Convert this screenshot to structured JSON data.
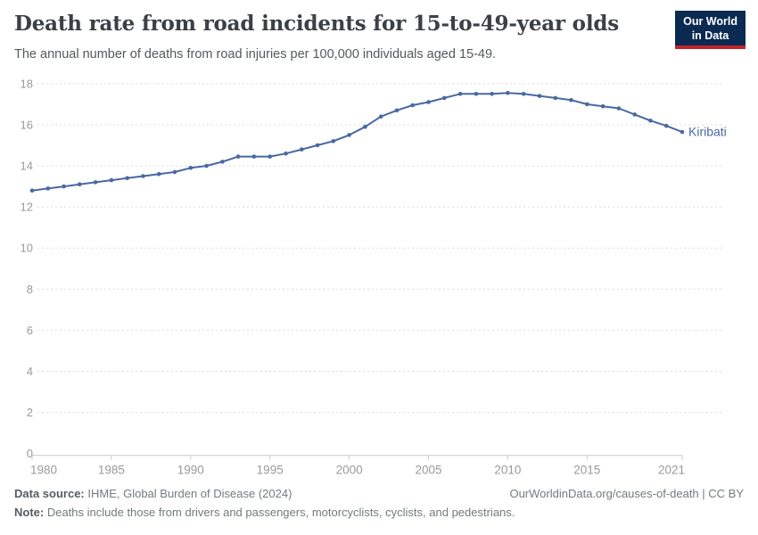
{
  "header": {
    "title": "Death rate from road incidents for 15-to-49-year olds",
    "subtitle": "The annual number of deaths from road injuries per 100,000 individuals aged 15-49."
  },
  "logo": {
    "line1": "Our World",
    "line2": "in Data"
  },
  "chart_data": {
    "type": "line",
    "title": "Death rate from road incidents for 15-to-49-year olds",
    "xlabel": "",
    "ylabel": "",
    "xlim": [
      1980,
      2021
    ],
    "ylim": [
      0,
      18
    ],
    "grid": "horizontal-dashed",
    "x_ticks": [
      1980,
      1985,
      1990,
      1995,
      2000,
      2005,
      2010,
      2015,
      2021
    ],
    "y_ticks": [
      0,
      2,
      4,
      6,
      8,
      10,
      12,
      14,
      16,
      18
    ],
    "legend_position": "end-of-line-label",
    "series": [
      {
        "name": "Kiribati",
        "color": "#4a68a1",
        "x": [
          1980,
          1981,
          1982,
          1983,
          1984,
          1985,
          1986,
          1987,
          1988,
          1989,
          1990,
          1991,
          1992,
          1993,
          1994,
          1995,
          1996,
          1997,
          1998,
          1999,
          2000,
          2001,
          2002,
          2003,
          2004,
          2005,
          2006,
          2007,
          2008,
          2009,
          2010,
          2011,
          2012,
          2013,
          2014,
          2015,
          2016,
          2017,
          2018,
          2019,
          2020,
          2021
        ],
        "values": [
          12.8,
          12.9,
          13.0,
          13.1,
          13.2,
          13.3,
          13.4,
          13.5,
          13.6,
          13.7,
          13.9,
          14.0,
          14.2,
          14.45,
          14.45,
          14.45,
          14.6,
          14.8,
          15.0,
          15.2,
          15.5,
          15.9,
          16.4,
          16.7,
          16.95,
          17.1,
          17.3,
          17.5,
          17.5,
          17.5,
          17.55,
          17.5,
          17.4,
          17.3,
          17.2,
          17.0,
          16.9,
          16.8,
          16.5,
          16.2,
          15.95,
          15.65
        ]
      }
    ],
    "end_label": "Kiribati"
  },
  "footer": {
    "source_label": "Data source:",
    "source_text": " IHME, Global Burden of Disease (2024)",
    "note_label": "Note:",
    "note_text": " Deaths include those from drivers and passengers, motorcyclists, cyclists, and pedestrians.",
    "link": "OurWorldinData.org/causes-of-death | CC BY"
  },
  "colors": {
    "line": "#4a68a1",
    "grid": "#dcdcdc",
    "axis": "#c9c9c9",
    "tick_label": "#9a9a9a",
    "logo_bg": "#0b2a52",
    "logo_accent": "#c2232d"
  }
}
